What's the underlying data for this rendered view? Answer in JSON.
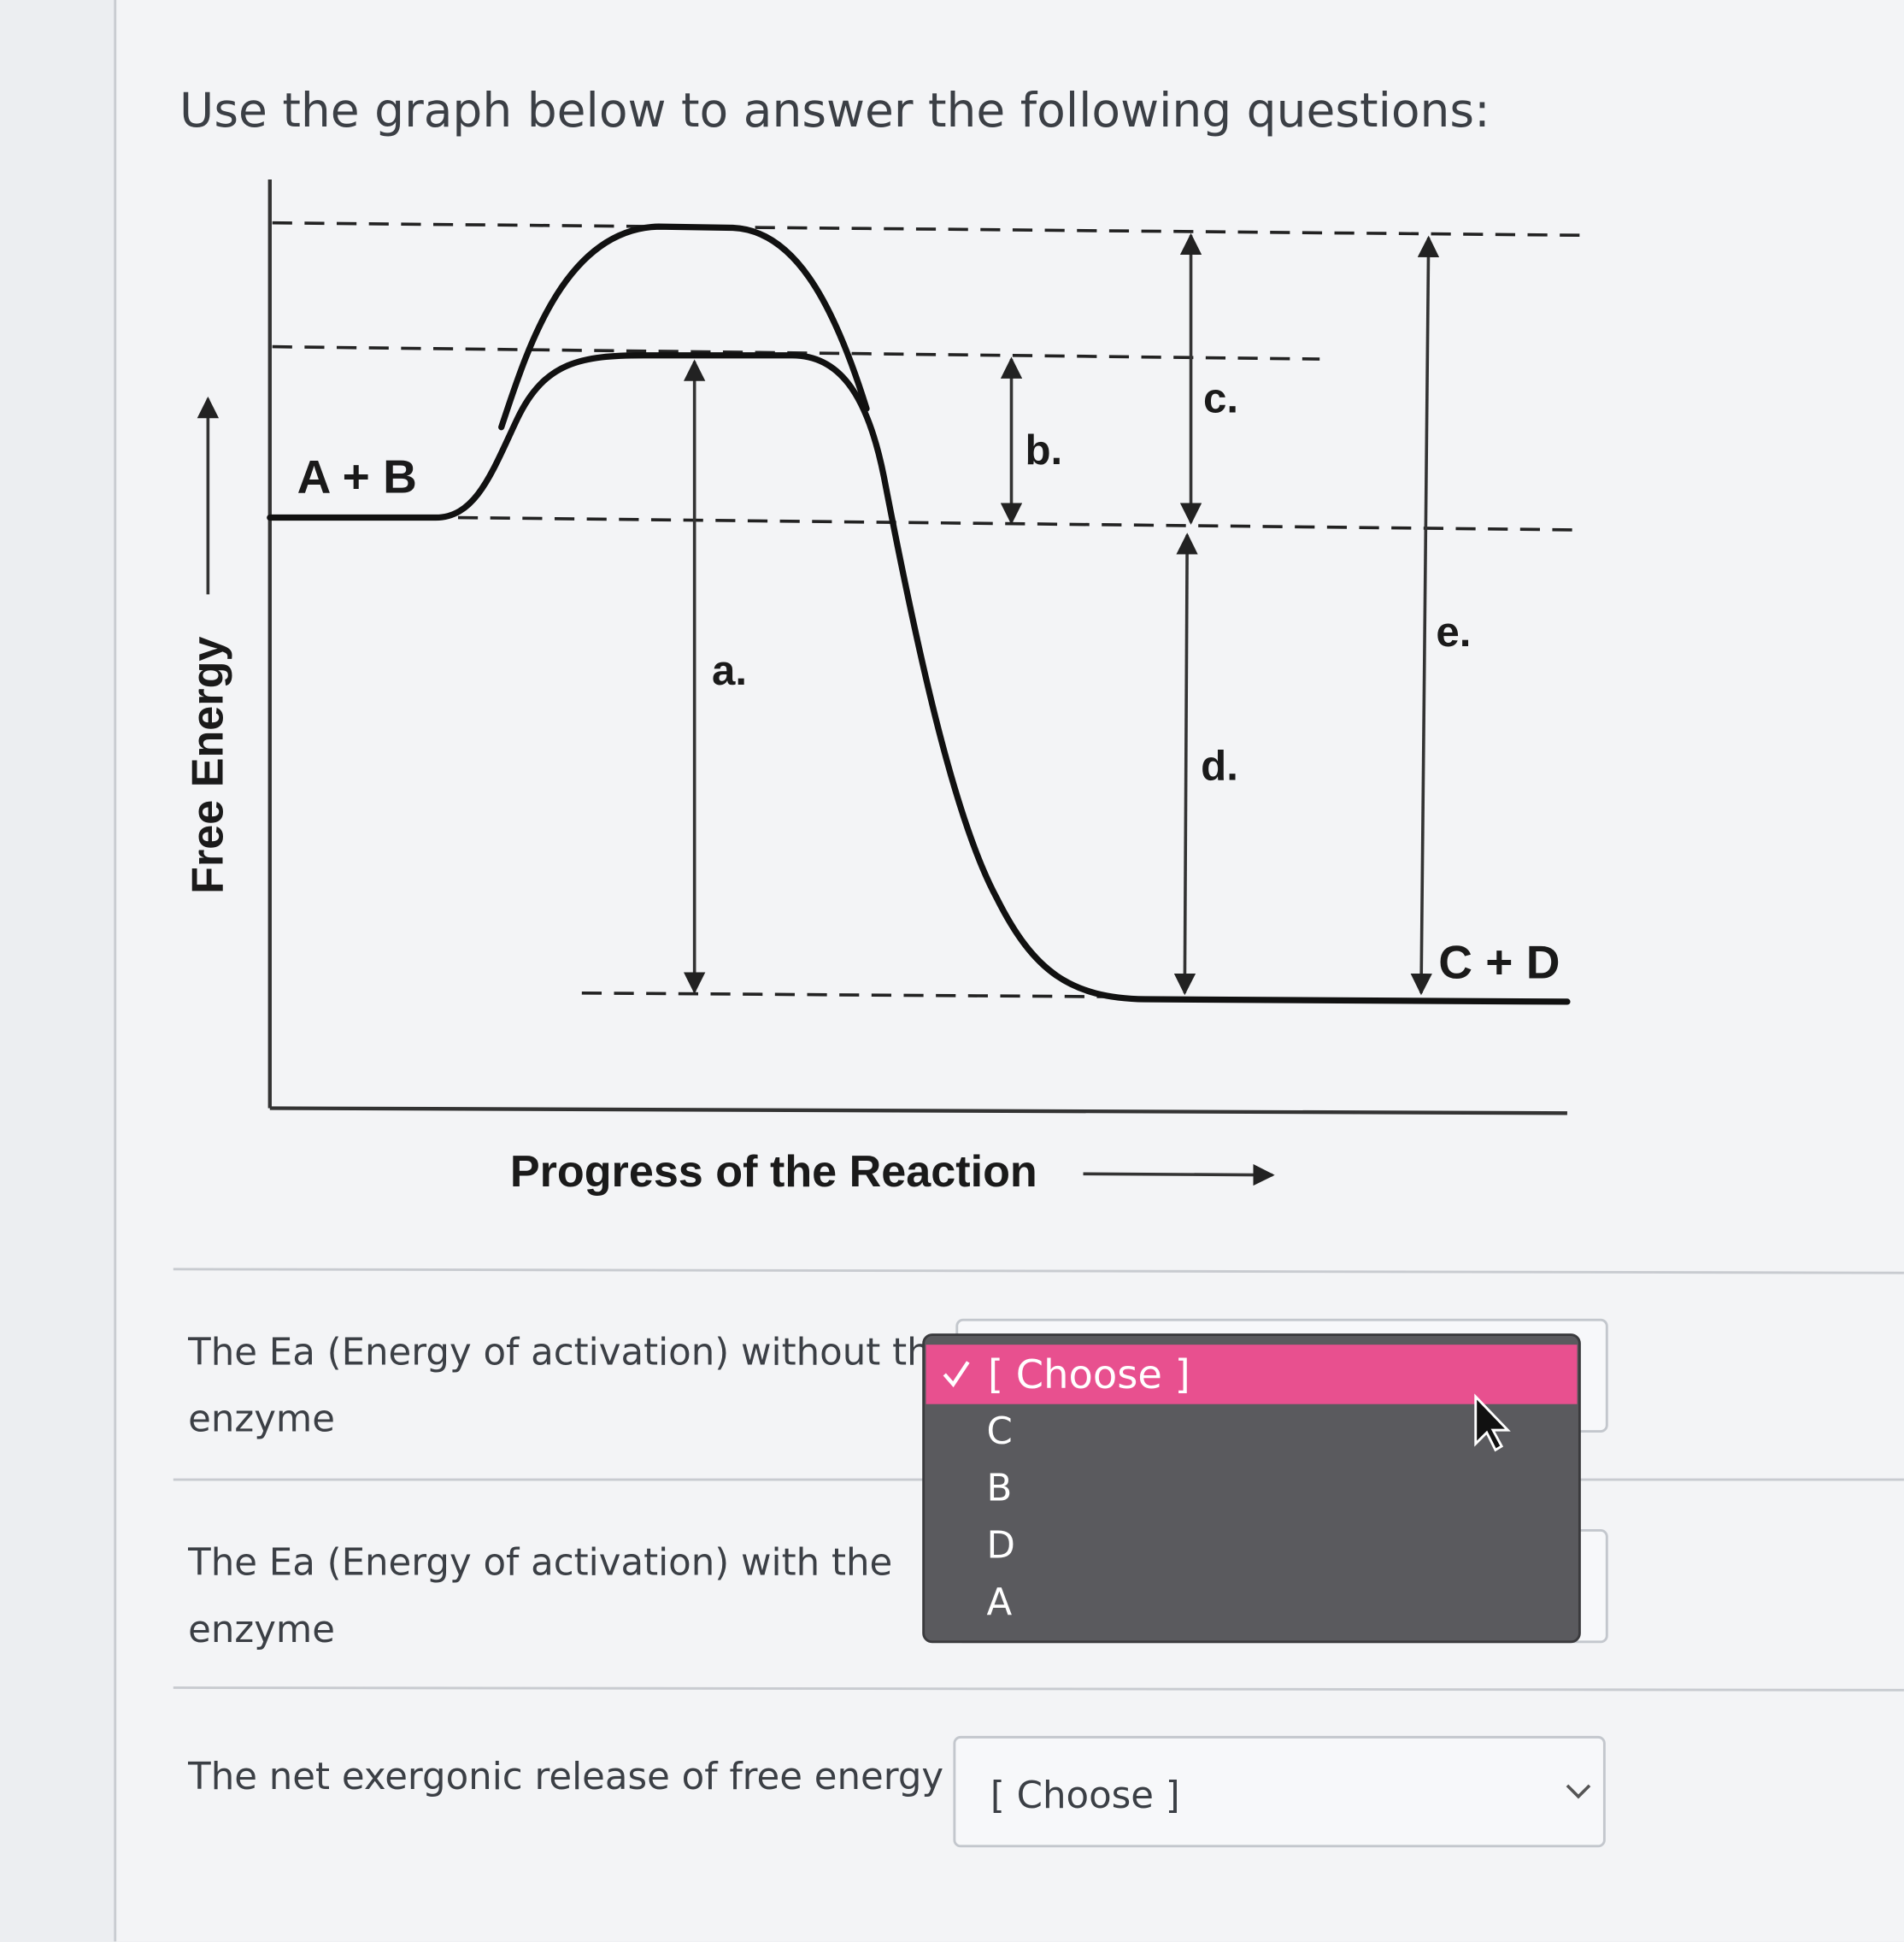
{
  "instruction": "Use the graph below to answer the following questions:",
  "diagram": {
    "y_axis_label": "Free Energy",
    "x_axis_label": "Progress of the Reaction",
    "reactants": "A + B",
    "products": "C + D",
    "markers": [
      "a.",
      "b.",
      "c.",
      "d.",
      "e."
    ]
  },
  "questions": [
    {
      "prompt_lines": [
        "The Ea (Energy of activation) without the",
        "enzyme"
      ]
    },
    {
      "prompt_lines": [
        "The Ea (Energy of activation) with the",
        "enzyme"
      ]
    },
    {
      "prompt_lines": [
        "The net exergonic release of free energy"
      ],
      "select": "[ Choose ]"
    }
  ],
  "dropdown_menu": {
    "selected": "[ Choose ]",
    "options": [
      "C",
      "B",
      "D",
      "A"
    ]
  }
}
